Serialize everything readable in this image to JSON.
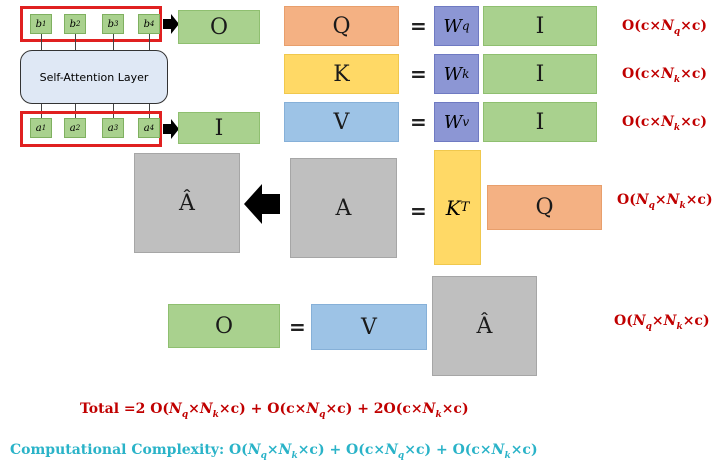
{
  "tokens_top": [
    "b1",
    "b2",
    "b3",
    "b4"
  ],
  "tokens_bottom": [
    "a1",
    "a2",
    "a3",
    "a4"
  ],
  "attention_layer": "Self-Attention Layer",
  "labels": {
    "O": "O",
    "I": "I",
    "Q": "Q",
    "K": "K",
    "V": "V",
    "A": "A",
    "A_hat": "Â",
    "eq": "="
  },
  "weights": {
    "Wq": "W",
    "Wq_sup": "q",
    "Wk": "W",
    "Wk_sup": "k",
    "Wv": "W",
    "Wv_sup": "v",
    "KT": "K",
    "KT_sup": "T"
  },
  "complexity_rows": {
    "q": "O(c×Nq×c)",
    "k": "O(c×Nk×c)",
    "v": "O(c×Nk×c)",
    "a": "O(Nq×Nk×c)",
    "o": "O(Nq×Nk×c)"
  },
  "total": "Total =2 O(Nq×Nk×c) + O(c×Nq×c) + 2O(c×Nk×c)",
  "computational": "Computational Complexity: O(Nq×Nk×c) + O(c×Nq×c) + O(c×Nk×c)",
  "colors": {
    "green": "#a9d18e",
    "orange": "#f4b183",
    "yellow": "#ffd966",
    "blue": "#9dc3e6",
    "purple": "#8c96d4",
    "gray": "#bfbfbf",
    "red": "#c00000",
    "teal": "#2ab3c8"
  }
}
